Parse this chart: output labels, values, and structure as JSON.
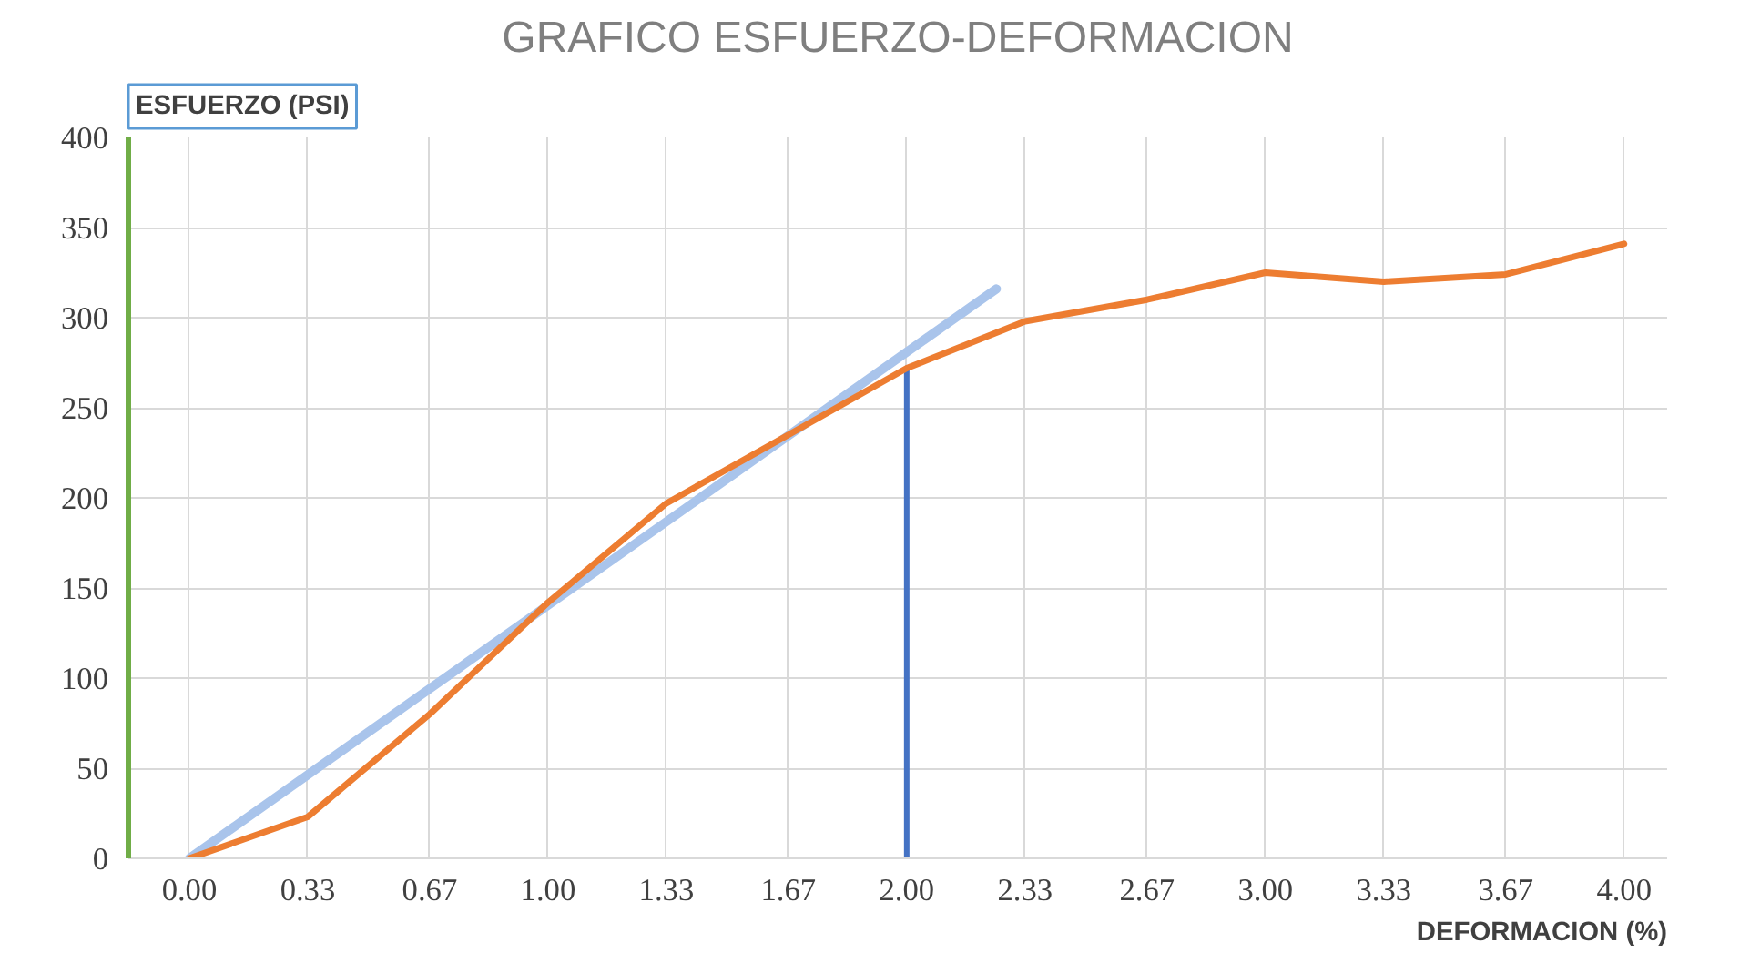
{
  "chart_data": {
    "type": "line",
    "title": "GRAFICO ESFUERZO-DEFORMACION",
    "ylabel": "ESFUERZO (PSI)",
    "xlabel": "DEFORMACION (%)",
    "x": [
      0,
      0.33,
      0.67,
      1.0,
      1.33,
      1.67,
      2.0,
      2.33,
      2.67,
      3.0,
      3.33,
      3.67,
      4.0
    ],
    "series": [
      {
        "color": "#ed7d31",
        "values": [
          0,
          23,
          80,
          142,
          197,
          235,
          272,
          298,
          310,
          325,
          320,
          324,
          341
        ]
      },
      {
        "color": "#a9c4eb",
        "x": [
          0,
          2.25
        ],
        "values": [
          0,
          316
        ]
      },
      {
        "color": "#4472c4",
        "x": [
          2.0,
          2.0
        ],
        "values": [
          0,
          272
        ]
      }
    ],
    "xlim": [
      -0.17,
      4.12
    ],
    "ylim": [
      0,
      400
    ],
    "xticks": [
      {
        "value": 0,
        "label": "0.00"
      },
      {
        "value": 0.33,
        "label": "0.33"
      },
      {
        "value": 0.67,
        "label": "0.67"
      },
      {
        "value": 1.0,
        "label": "1.00"
      },
      {
        "value": 1.33,
        "label": "1.33"
      },
      {
        "value": 1.67,
        "label": "1.67"
      },
      {
        "value": 2.0,
        "label": "2.00"
      },
      {
        "value": 2.33,
        "label": "2.33"
      },
      {
        "value": 2.67,
        "label": "2.67"
      },
      {
        "value": 3.0,
        "label": "3.00"
      },
      {
        "value": 3.33,
        "label": "3.33"
      },
      {
        "value": 3.67,
        "label": "3.67"
      },
      {
        "value": 4.0,
        "label": "4.00"
      }
    ],
    "yticks": [
      0,
      50,
      100,
      150,
      200,
      250,
      300,
      350,
      400
    ],
    "grid": true,
    "marker": "none",
    "line_style": "solid"
  }
}
